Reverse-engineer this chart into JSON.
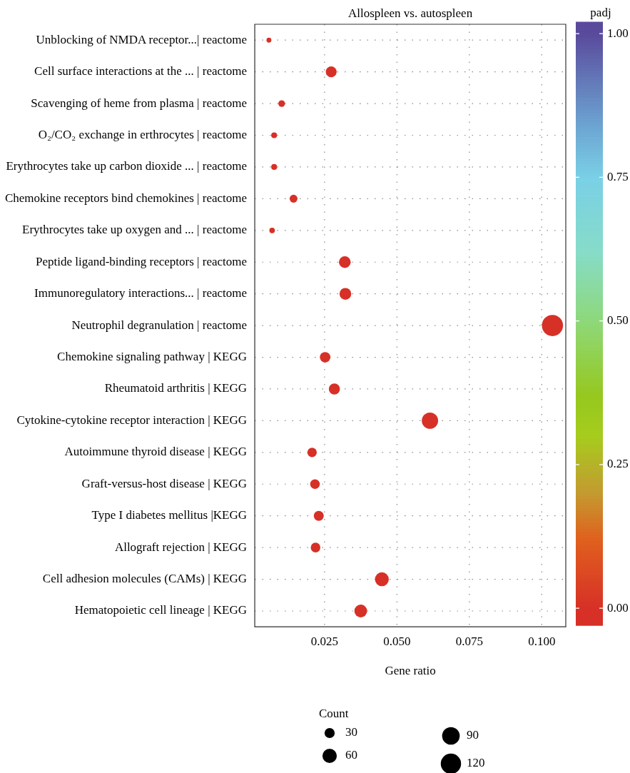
{
  "chart_data": {
    "type": "bubble",
    "title": "Allospleen vs. autospleen",
    "xlabel": "Gene ratio",
    "clabel": "padj",
    "legend_title": "Count",
    "categories": [
      "Unblocking of NMDA receptor...| reactome",
      "Cell surface interactions at the ... | reactome",
      "Scavenging of heme from plasma | reactome",
      "O₂/CO₂ exchange in erthrocytes | reactome",
      "Erythrocytes take up carbon dioxide ... | reactome",
      "Chemokine receptors bind chemokines | reactome",
      "Erythrocytes take up oxygen and ... | reactome",
      "Peptide ligand-binding receptors | reactome",
      "Immunoregulatory interactions... | reactome",
      "Neutrophil degranulation | reactome",
      "Chemokine signaling pathway | KEGG",
      "Rheumatoid arthritis | KEGG",
      "Cytokine-cytokine receptor interaction | KEGG",
      "Autoimmune thyroid disease | KEGG",
      "Graft-versus-host disease | KEGG",
      "Type I diabetes mellitus |KEGG",
      "Allograft rejection | KEGG",
      "Cell adhesion molecules (CAMs) | KEGG",
      "Hematopoietic cell lineage | KEGG"
    ],
    "orientation": "horizontal",
    "values": [
      0.0058,
      0.0273,
      0.0102,
      0.0076,
      0.0076,
      0.0143,
      0.0069,
      0.032,
      0.0322,
      0.1037,
      0.0252,
      0.0284,
      0.0614,
      0.0207,
      0.0217,
      0.023,
      0.0219,
      0.0448,
      0.0375
    ],
    "sizes": [
      7,
      34,
      13,
      10,
      10,
      18,
      9,
      40,
      40,
      130,
      32,
      36,
      77,
      26,
      27,
      29,
      27,
      56,
      47
    ],
    "cvalues": [
      0,
      0,
      0,
      0,
      0,
      0,
      0,
      0,
      0,
      0,
      0,
      0,
      0,
      0,
      0,
      0,
      0,
      0,
      0
    ],
    "size_legend": [
      {
        "value": 30,
        "label": "30"
      },
      {
        "value": 60,
        "label": "60"
      },
      {
        "value": 90,
        "label": "90"
      },
      {
        "value": 120,
        "label": "120"
      }
    ],
    "xlim": [
      0.0009,
      0.1083
    ],
    "xticks": [
      {
        "value": 0.025,
        "label": "0.025"
      },
      {
        "value": 0.05,
        "label": "0.050"
      },
      {
        "value": 0.075,
        "label": "0.075"
      },
      {
        "value": 0.1,
        "label": "0.100"
      }
    ],
    "clim": [
      -0.03,
      1.02
    ],
    "cticks": [
      {
        "value": 0,
        "label": "0.00"
      },
      {
        "value": 0.25,
        "label": "0.25"
      },
      {
        "value": 0.5,
        "label": "0.50"
      },
      {
        "value": 0.75,
        "label": "0.75"
      },
      {
        "value": 1,
        "label": "1.00"
      }
    ],
    "grid": true
  }
}
